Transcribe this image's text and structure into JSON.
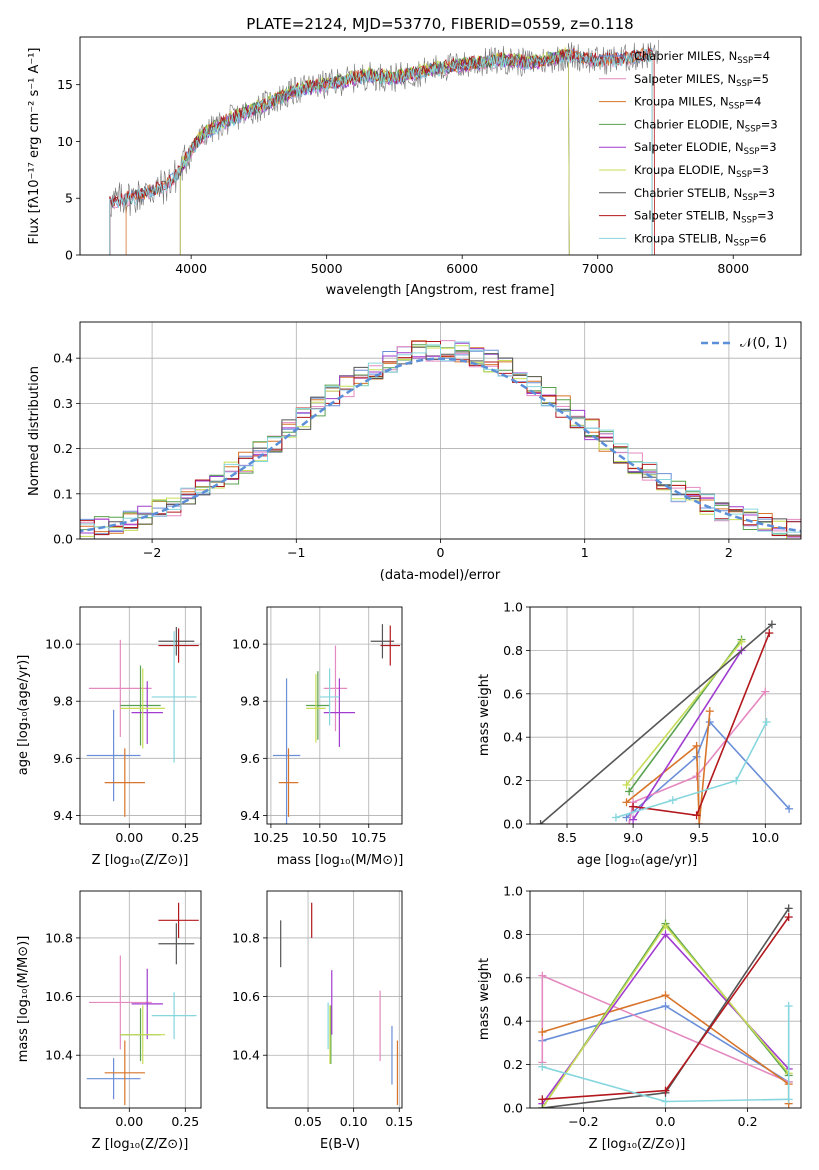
{
  "colors": {
    "Chabrier MILES": "#6a8fd8",
    "Salpeter MILES": "#e58ac0",
    "Kroupa MILES": "#d8752a",
    "Chabrier ELODIE": "#59a14f",
    "Salpeter ELODIE": "#a03ccf",
    "Kroupa ELODIE": "#c6dd55",
    "Chabrier STELIB": "#555555",
    "Salpeter STELIB": "#b2181d",
    "Kroupa STELIB": "#86d6dd",
    "normal": "#5b8fd8",
    "grid": "#b0b0b0"
  },
  "chart_data": [
    {
      "id": "spectrum",
      "type": "line",
      "title": "PLATE=2124, MJD=53770, FIBERID=0559, z=0.118",
      "xlabel": "wavelength [Angstrom, rest frame]",
      "ylabel": "Flux [fλ10⁻¹⁷ erg cm⁻² s⁻¹ A⁻¹]",
      "xlim": [
        3180,
        8500
      ],
      "ylim": [
        0,
        19.2
      ],
      "xticks": [
        4000,
        5000,
        6000,
        7000,
        8000
      ],
      "yticks": [
        0,
        5,
        10,
        15
      ],
      "grid": false,
      "legend": "top-right",
      "continuum_x": [
        3400,
        3500,
        3600,
        3800,
        3900,
        4000,
        4100,
        4300,
        4500,
        4800,
        5000,
        5300,
        5500,
        5800,
        6000,
        6300,
        6500,
        6800,
        7000,
        7200,
        7450
      ],
      "continuum_y": [
        4.6,
        4.9,
        5.2,
        6.0,
        7.1,
        9.3,
        10.7,
        12.0,
        13.0,
        14.6,
        15.0,
        15.8,
        15.6,
        16.4,
        16.7,
        17.2,
        16.9,
        17.6,
        17.1,
        17.3,
        17.8
      ],
      "series": [
        {
          "name": "Chabrier MILES, N_SSP=4",
          "color": "Chabrier MILES",
          "xrange": [
            3400,
            7400
          ],
          "offset": 0.0
        },
        {
          "name": "Salpeter MILES, N_SSP=5",
          "color": "Salpeter MILES",
          "xrange": [
            3400,
            7400
          ],
          "offset": -0.1
        },
        {
          "name": "Kroupa MILES, N_SSP=4",
          "color": "Kroupa MILES",
          "xrange": [
            3520,
            7400
          ],
          "offset": 0.05
        },
        {
          "name": "Chabrier ELODIE, N_SSP=3",
          "color": "Chabrier ELODIE",
          "xrange": [
            3920,
            6790
          ],
          "offset": 0.1
        },
        {
          "name": "Salpeter ELODIE, N_SSP=3",
          "color": "Salpeter ELODIE",
          "xrange": [
            3920,
            6790
          ],
          "offset": -0.05
        },
        {
          "name": "Kroupa ELODIE, N_SSP=3",
          "color": "Kroupa ELODIE",
          "xrange": [
            3920,
            6790
          ],
          "offset": 0.15
        },
        {
          "name": "Chabrier STELIB, N_SSP=3",
          "color": "Chabrier STELIB",
          "xrange": [
            3400,
            7400
          ],
          "offset": 0.0
        },
        {
          "name": "Salpeter STELIB, N_SSP=3",
          "color": "Salpeter STELIB",
          "xrange": [
            3400,
            7420
          ],
          "offset": 0.1
        },
        {
          "name": "Kroupa STELIB, N_SSP=6",
          "color": "Kroupa STELIB",
          "xrange": [
            3400,
            7400
          ],
          "offset": -0.08
        }
      ]
    },
    {
      "id": "residuals",
      "type": "bar",
      "xlabel": "(data-model)/error",
      "ylabel": "Normed distribution",
      "xlim": [
        -2.5,
        2.5
      ],
      "ylim": [
        0,
        0.48
      ],
      "xticks": [
        -2,
        -1,
        0,
        1,
        2
      ],
      "yticks": [
        0.0,
        0.1,
        0.2,
        0.3,
        0.4
      ],
      "grid": true,
      "legend": "top-right",
      "reference_curve": {
        "label": "𝒩(0, 1)",
        "mean": 0,
        "sigma": 1,
        "color": "normal"
      },
      "bin_width": 0.1,
      "series_colors": [
        "Chabrier MILES",
        "Salpeter MILES",
        "Kroupa MILES",
        "Chabrier ELODIE",
        "Salpeter ELODIE",
        "Kroupa ELODIE",
        "Chabrier STELIB",
        "Salpeter STELIB",
        "Kroupa STELIB"
      ]
    },
    {
      "id": "age_vs_Z",
      "type": "scatter",
      "xlabel": "Z [log₁₀(Z/Z⊙)]",
      "ylabel": "age  [log₁₀(age/yr)]",
      "xlim": [
        -0.22,
        0.32
      ],
      "ylim": [
        9.37,
        10.13
      ],
      "xticks": [
        0.0,
        0.25
      ],
      "xticklabels": [
        "0.00",
        "0.25"
      ],
      "yticks": [
        9.4,
        9.6,
        9.8,
        10.0
      ],
      "yticklabels": [
        "9.4",
        "9.6",
        "9.8",
        "10.0"
      ],
      "grid": true,
      "points": [
        {
          "color": "Chabrier MILES",
          "x": -0.07,
          "y": 9.61,
          "xerr": 0.12,
          "yerr": 0.16
        },
        {
          "color": "Salpeter MILES",
          "x": -0.04,
          "y": 9.845,
          "xerr": 0.14,
          "yerr": 0.17
        },
        {
          "color": "Kroupa MILES",
          "x": -0.02,
          "y": 9.515,
          "xerr": 0.09,
          "yerr": 0.12
        },
        {
          "color": "Chabrier ELODIE",
          "x": 0.05,
          "y": 9.785,
          "xerr": 0.09,
          "yerr": 0.14
        },
        {
          "color": "Salpeter ELODIE",
          "x": 0.08,
          "y": 9.76,
          "xerr": 0.07,
          "yerr": 0.11
        },
        {
          "color": "Kroupa ELODIE",
          "x": 0.06,
          "y": 9.775,
          "xerr": 0.1,
          "yerr": 0.14
        },
        {
          "color": "Chabrier STELIB",
          "x": 0.21,
          "y": 10.01,
          "xerr": 0.08,
          "yerr": 0.05
        },
        {
          "color": "Salpeter STELIB",
          "x": 0.22,
          "y": 9.995,
          "xerr": 0.09,
          "yerr": 0.06
        },
        {
          "color": "Kroupa STELIB",
          "x": 0.2,
          "y": 9.815,
          "xerr": 0.1,
          "yerr": 0.23
        }
      ]
    },
    {
      "id": "age_vs_mass",
      "type": "scatter",
      "xlabel": "mass [log₁₀(M/M⊙)]",
      "ylabel": "",
      "xlim": [
        10.23,
        10.92
      ],
      "ylim": [
        9.37,
        10.13
      ],
      "xticks": [
        10.25,
        10.5,
        10.75
      ],
      "xticklabels": [
        "10.25",
        "10.50",
        "10.75"
      ],
      "yticks": [
        9.4,
        9.6,
        9.8,
        10.0
      ],
      "yticklabels": [
        "9.4",
        "9.6",
        "9.8",
        "10.0"
      ],
      "grid": true,
      "points": [
        {
          "color": "Chabrier MILES",
          "x": 10.33,
          "y": 9.61,
          "xerr": 0.07,
          "yerr": 0.27
        },
        {
          "color": "Salpeter MILES",
          "x": 10.58,
          "y": 9.845,
          "xerr": 0.06,
          "yerr": 0.15
        },
        {
          "color": "Kroupa MILES",
          "x": 10.34,
          "y": 9.515,
          "xerr": 0.05,
          "yerr": 0.12
        },
        {
          "color": "Chabrier ELODIE",
          "x": 10.49,
          "y": 9.785,
          "xerr": 0.06,
          "yerr": 0.12
        },
        {
          "color": "Salpeter ELODIE",
          "x": 10.6,
          "y": 9.76,
          "xerr": 0.08,
          "yerr": 0.12
        },
        {
          "color": "Kroupa ELODIE",
          "x": 10.48,
          "y": 9.775,
          "xerr": 0.05,
          "yerr": 0.12
        },
        {
          "color": "Chabrier STELIB",
          "x": 10.82,
          "y": 10.01,
          "xerr": 0.06,
          "yerr": 0.06
        },
        {
          "color": "Salpeter STELIB",
          "x": 10.86,
          "y": 9.995,
          "xerr": 0.05,
          "yerr": 0.07
        },
        {
          "color": "Kroupa STELIB",
          "x": 10.55,
          "y": 9.815,
          "xerr": 0.05,
          "yerr": 0.1
        }
      ]
    },
    {
      "id": "weight_vs_age",
      "type": "line",
      "xlabel": "age  [log₁₀(age/yr)]",
      "ylabel": "mass weight",
      "xlim": [
        8.22,
        10.27
      ],
      "ylim": [
        0,
        1.0
      ],
      "xticks": [
        8.5,
        9.0,
        9.5,
        10.0
      ],
      "xticklabels": [
        "8.5",
        "9.0",
        "9.5",
        "10.0"
      ],
      "yticks": [
        0.0,
        0.2,
        0.4,
        0.6,
        0.8,
        1.0
      ],
      "yticklabels": [
        "0.0",
        "0.2",
        "0.4",
        "0.6",
        "0.8",
        "1.0"
      ],
      "grid": true,
      "series": [
        {
          "color": "Chabrier MILES",
          "x": [
            8.95,
            9.48,
            9.58,
            10.18
          ],
          "y": [
            0.03,
            0.31,
            0.47,
            0.07
          ]
        },
        {
          "color": "Salpeter MILES",
          "x": [
            8.97,
            9.0,
            9.48,
            10.0
          ],
          "y": [
            0.0,
            0.1,
            0.22,
            0.61
          ]
        },
        {
          "color": "Kroupa MILES",
          "x": [
            8.95,
            9.48,
            9.5,
            9.58
          ],
          "y": [
            0.1,
            0.36,
            0.0,
            0.52
          ]
        },
        {
          "color": "Chabrier ELODIE",
          "x": [
            8.97,
            9.82
          ],
          "y": [
            0.15,
            0.85
          ]
        },
        {
          "color": "Salpeter ELODIE",
          "x": [
            9.0,
            9.82
          ],
          "y": [
            0.02,
            0.8
          ]
        },
        {
          "color": "Kroupa ELODIE",
          "x": [
            8.95,
            9.82
          ],
          "y": [
            0.18,
            0.84
          ]
        },
        {
          "color": "Chabrier STELIB",
          "x": [
            8.3,
            10.05
          ],
          "y": [
            0.0,
            0.92
          ]
        },
        {
          "color": "Salpeter STELIB",
          "x": [
            9.0,
            9.48,
            10.03
          ],
          "y": [
            0.08,
            0.04,
            0.88
          ]
        },
        {
          "color": "Kroupa STELIB",
          "x": [
            8.87,
            9.3,
            9.78,
            10.01
          ],
          "y": [
            0.03,
            0.11,
            0.2,
            0.47
          ]
        }
      ]
    },
    {
      "id": "mass_vs_Z",
      "type": "scatter",
      "xlabel": "Z [log₁₀(Z/Z⊙)]",
      "ylabel": "mass [log₁₀(M/M⊙)]",
      "xlim": [
        -0.22,
        0.32
      ],
      "ylim": [
        10.22,
        10.96
      ],
      "xticks": [
        0.0,
        0.25
      ],
      "xticklabels": [
        "0.00",
        "0.25"
      ],
      "yticks": [
        10.4,
        10.6,
        10.8
      ],
      "yticklabels": [
        "10.4",
        "10.6",
        "10.8"
      ],
      "grid": true,
      "points": [
        {
          "color": "Chabrier MILES",
          "x": -0.07,
          "y": 10.32,
          "xerr": 0.12,
          "yerr": 0.07
        },
        {
          "color": "Salpeter MILES",
          "x": -0.04,
          "y": 10.58,
          "xerr": 0.14,
          "yerr": 0.16
        },
        {
          "color": "Kroupa MILES",
          "x": -0.02,
          "y": 10.34,
          "xerr": 0.09,
          "yerr": 0.11
        },
        {
          "color": "Chabrier ELODIE",
          "x": 0.05,
          "y": 10.47,
          "xerr": 0.09,
          "yerr": 0.09
        },
        {
          "color": "Salpeter ELODIE",
          "x": 0.08,
          "y": 10.575,
          "xerr": 0.07,
          "yerr": 0.12
        },
        {
          "color": "Kroupa ELODIE",
          "x": 0.06,
          "y": 10.47,
          "xerr": 0.1,
          "yerr": 0.1
        },
        {
          "color": "Chabrier STELIB",
          "x": 0.21,
          "y": 10.78,
          "xerr": 0.08,
          "yerr": 0.07
        },
        {
          "color": "Salpeter STELIB",
          "x": 0.22,
          "y": 10.86,
          "xerr": 0.09,
          "yerr": 0.06
        },
        {
          "color": "Kroupa STELIB",
          "x": 0.2,
          "y": 10.535,
          "xerr": 0.1,
          "yerr": 0.08
        }
      ]
    },
    {
      "id": "mass_vs_ebv",
      "type": "scatter",
      "xlabel": "E(B-V)",
      "ylabel": "",
      "xlim": [
        0.005,
        0.153
      ],
      "ylim": [
        10.22,
        10.96
      ],
      "xticks": [
        0.05,
        0.1,
        0.15
      ],
      "xticklabels": [
        "0.05",
        "0.10",
        "0.15"
      ],
      "yticks": [
        10.4,
        10.6,
        10.8
      ],
      "yticklabels": [
        "10.4",
        "10.6",
        "10.8"
      ],
      "grid": true,
      "points": [
        {
          "color": "Chabrier MILES",
          "x": 0.142,
          "y": 10.4,
          "xerr": 0,
          "yerr": 0.1
        },
        {
          "color": "Salpeter MILES",
          "x": 0.129,
          "y": 10.5,
          "xerr": 0,
          "yerr": 0.12
        },
        {
          "color": "Kroupa MILES",
          "x": 0.148,
          "y": 10.34,
          "xerr": 0,
          "yerr": 0.11
        },
        {
          "color": "Chabrier ELODIE",
          "x": 0.075,
          "y": 10.47,
          "xerr": 0,
          "yerr": 0.1
        },
        {
          "color": "Salpeter ELODIE",
          "x": 0.076,
          "y": 10.58,
          "xerr": 0,
          "yerr": 0.11
        },
        {
          "color": "Kroupa ELODIE",
          "x": 0.074,
          "y": 10.47,
          "xerr": 0,
          "yerr": 0.1
        },
        {
          "color": "Chabrier STELIB",
          "x": 0.02,
          "y": 10.78,
          "xerr": 0,
          "yerr": 0.08
        },
        {
          "color": "Salpeter STELIB",
          "x": 0.054,
          "y": 10.86,
          "xerr": 0,
          "yerr": 0.06
        },
        {
          "color": "Kroupa STELIB",
          "x": 0.072,
          "y": 10.5,
          "xerr": 0,
          "yerr": 0.08
        }
      ]
    },
    {
      "id": "weight_vs_Z",
      "type": "line",
      "xlabel": "Z [log₁₀(Z/Z⊙)]",
      "ylabel": "mass weight",
      "xlim": [
        -0.33,
        0.33
      ],
      "ylim": [
        0,
        1.0
      ],
      "xticks": [
        -0.2,
        0.0,
        0.2
      ],
      "xticklabels": [
        "−0.2",
        "0.0",
        "0.2"
      ],
      "yticks": [
        0.0,
        0.2,
        0.4,
        0.6,
        0.8,
        1.0
      ],
      "yticklabels": [
        "0.0",
        "0.2",
        "0.4",
        "0.6",
        "0.8",
        "1.0"
      ],
      "grid": true,
      "series": [
        {
          "color": "Chabrier MILES",
          "x": [
            -0.3,
            0.0,
            0.3
          ],
          "y": [
            0.31,
            0.47,
            0.12
          ]
        },
        {
          "color": "Salpeter MILES",
          "x": [
            -0.3,
            -0.3,
            0.3
          ],
          "y": [
            0.21,
            0.61,
            0.12
          ]
        },
        {
          "color": "Kroupa MILES",
          "x": [
            -0.3,
            0.0,
            0.3,
            0.3
          ],
          "y": [
            0.35,
            0.52,
            0.11,
            0.02
          ]
        },
        {
          "color": "Chabrier ELODIE",
          "x": [
            -0.3,
            0.0,
            0.3
          ],
          "y": [
            0.0,
            0.85,
            0.15
          ]
        },
        {
          "color": "Salpeter ELODIE",
          "x": [
            -0.3,
            0.0,
            0.3
          ],
          "y": [
            0.02,
            0.8,
            0.18
          ]
        },
        {
          "color": "Kroupa ELODIE",
          "x": [
            -0.3,
            0.0,
            0.3
          ],
          "y": [
            0.0,
            0.84,
            0.16
          ]
        },
        {
          "color": "Chabrier STELIB",
          "x": [
            -0.3,
            0.0,
            0.3
          ],
          "y": [
            0.0,
            0.07,
            0.92
          ]
        },
        {
          "color": "Salpeter STELIB",
          "x": [
            -0.3,
            0.0,
            0.3
          ],
          "y": [
            0.04,
            0.08,
            0.88
          ]
        },
        {
          "color": "Kroupa STELIB",
          "x": [
            -0.3,
            0.0,
            0.3,
            0.3
          ],
          "y": [
            0.19,
            0.03,
            0.04,
            0.47
          ]
        }
      ]
    }
  ]
}
